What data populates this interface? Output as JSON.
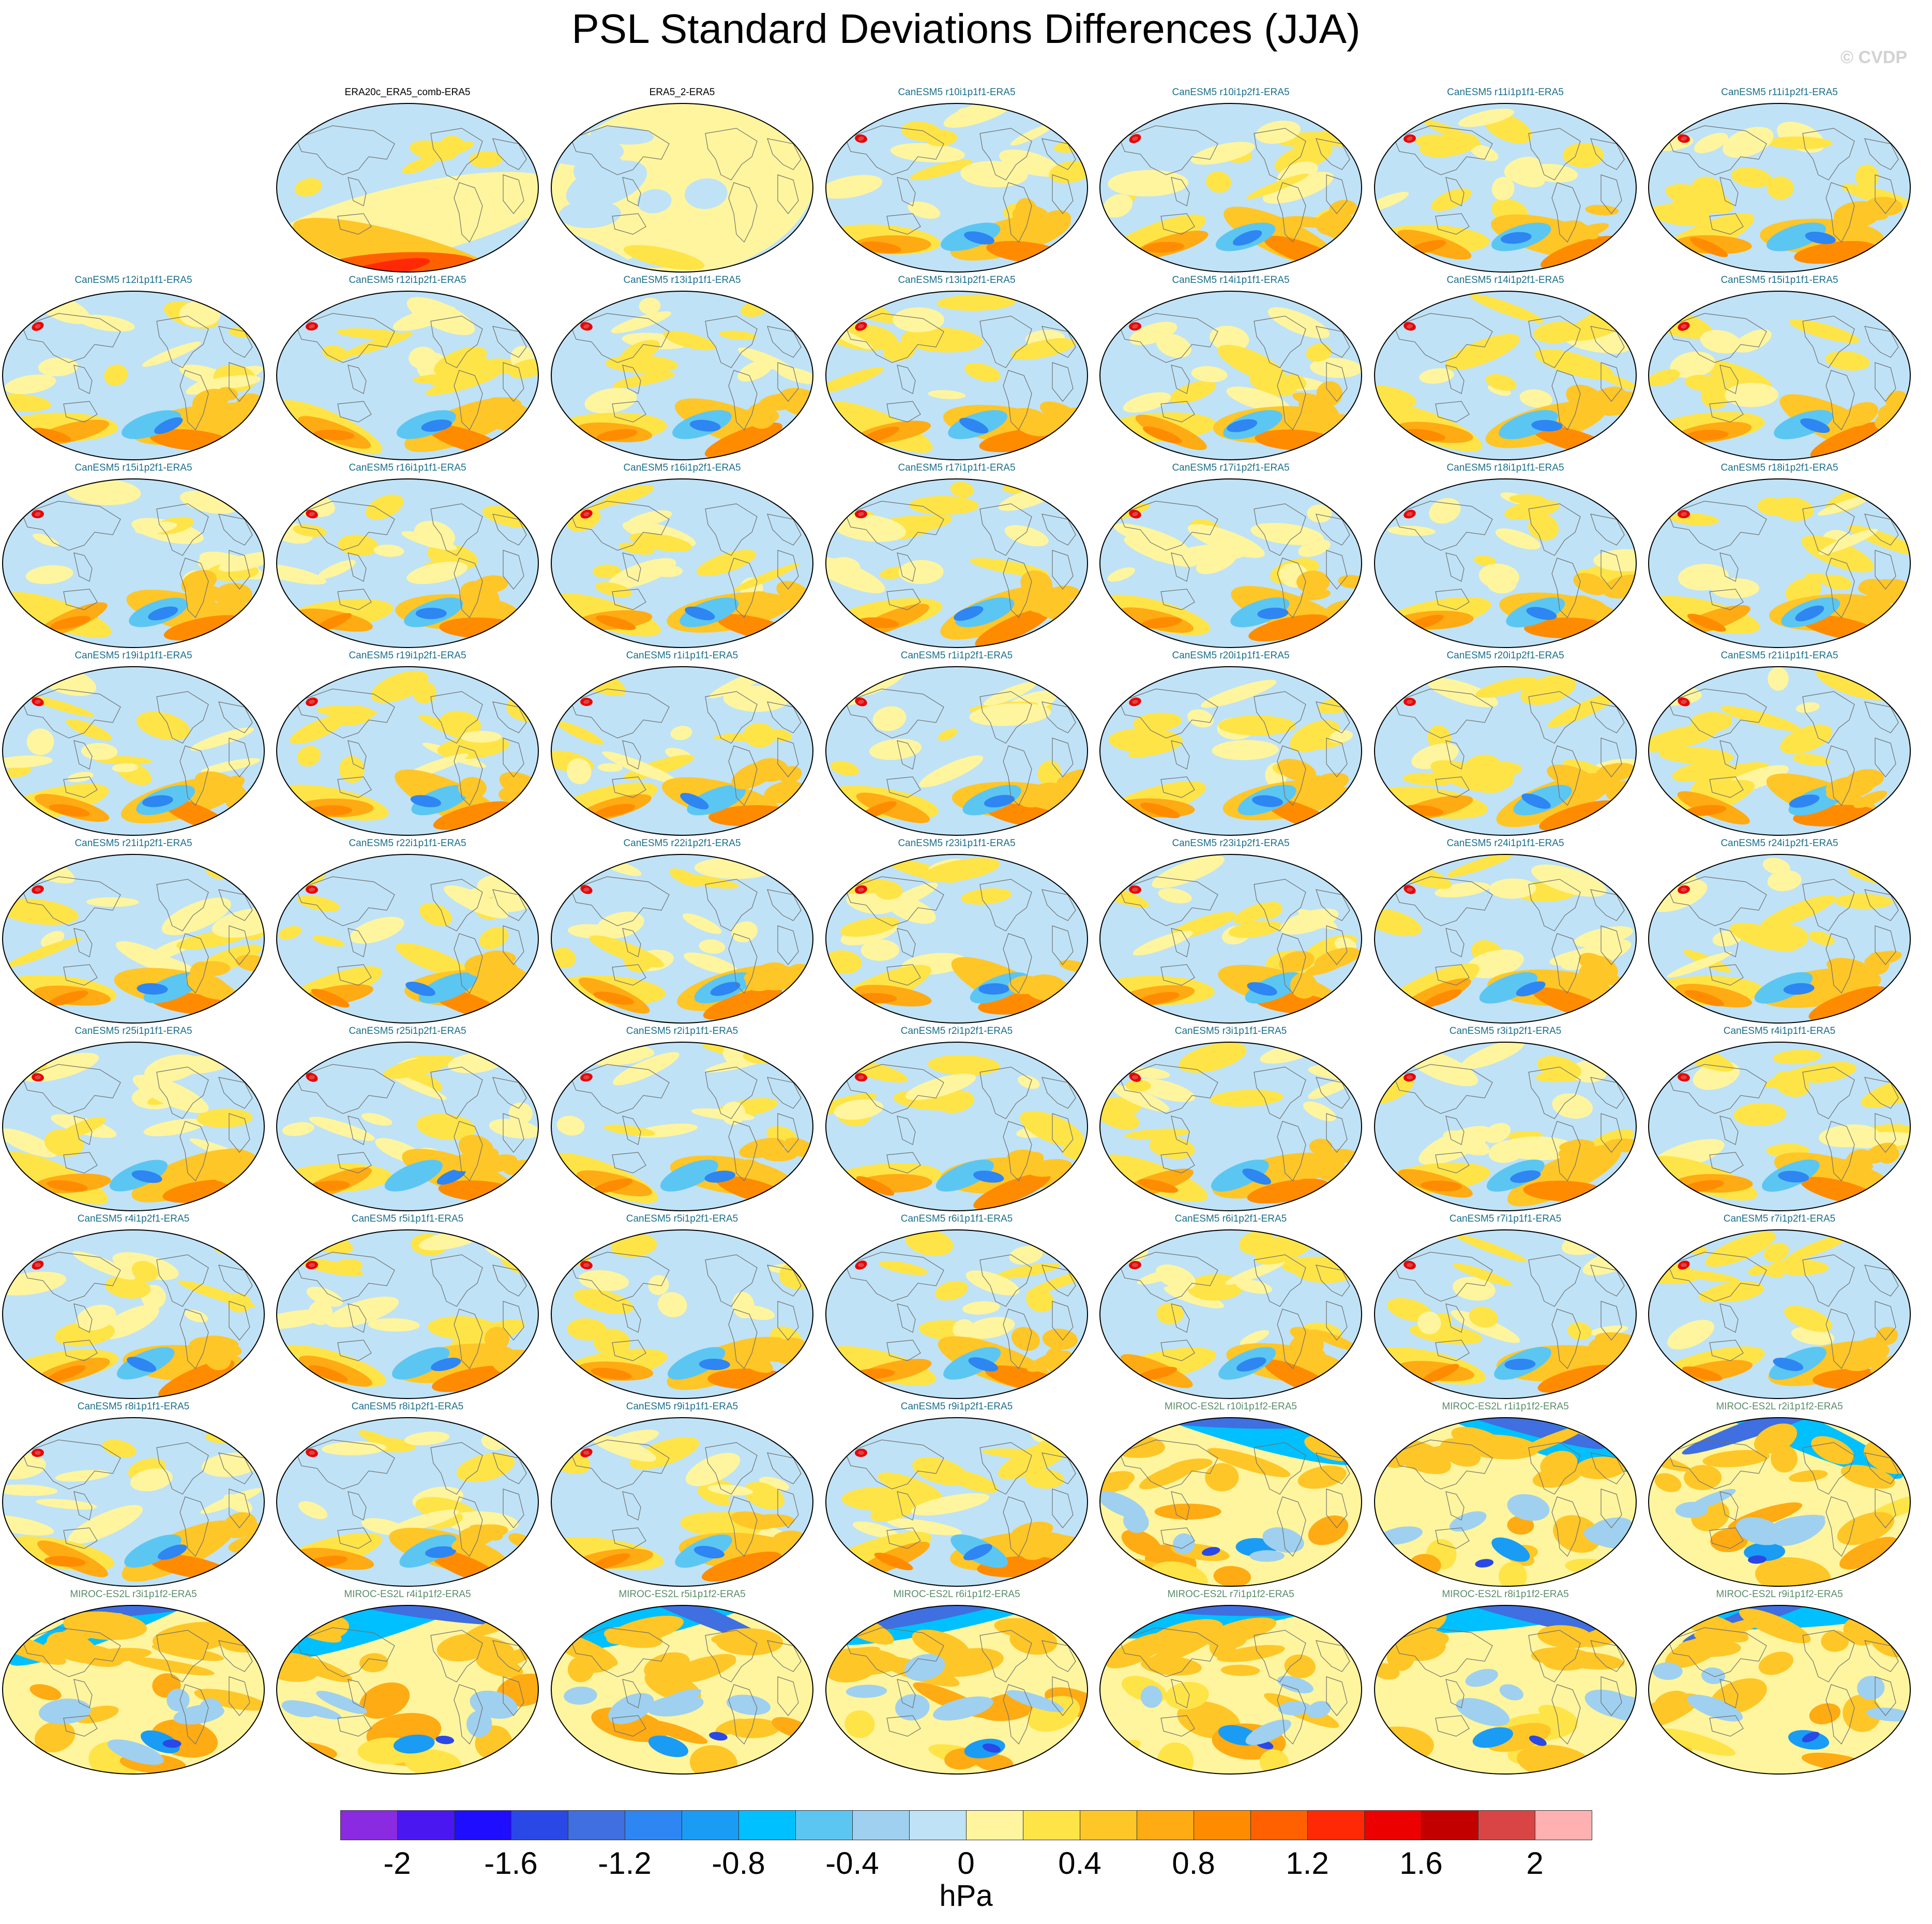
{
  "title": "PSL Standard Deviations Differences (JJA)",
  "copyright": "© CVDP",
  "colors": {
    "obs_title": "#000000",
    "canesm5_title": "#1b6f8c",
    "miroc_title": "#5b8c6a",
    "coastline": "#707070",
    "map_border": "#000000"
  },
  "chart_data": {
    "type": "heatmap",
    "units": "hPa",
    "colorbar": {
      "colors": [
        "#8a2be2",
        "#4b17f0",
        "#1f0dff",
        "#2a48e6",
        "#3f6fe0",
        "#2d86f2",
        "#1a9cf5",
        "#00c0ff",
        "#5cc6f2",
        "#9fd0ef",
        "#bfe2f6",
        "#fff59e",
        "#ffe447",
        "#ffc627",
        "#ffab13",
        "#ff8c00",
        "#ff6100",
        "#ff2a05",
        "#ec0000",
        "#c20000",
        "#d94545",
        "#ffb0b0"
      ],
      "tick_labels": [
        "-2",
        "-1.6",
        "-1.2",
        "-0.8",
        "-0.4",
        "0",
        "0.4",
        "0.8",
        "1.2",
        "1.6",
        "2"
      ]
    },
    "panels": [
      {
        "title": "ERA20c_ERA5_comb-ERA5",
        "group": "obs"
      },
      {
        "title": "ERA5_2-ERA5",
        "group": "obs"
      },
      {
        "title": "CanESM5 r10i1p1f1-ERA5",
        "group": "canesm5"
      },
      {
        "title": "CanESM5 r10i1p2f1-ERA5",
        "group": "canesm5"
      },
      {
        "title": "CanESM5 r11i1p1f1-ERA5",
        "group": "canesm5"
      },
      {
        "title": "CanESM5 r11i1p2f1-ERA5",
        "group": "canesm5"
      },
      {
        "title": "CanESM5 r12i1p1f1-ERA5",
        "group": "canesm5"
      },
      {
        "title": "CanESM5 r12i1p2f1-ERA5",
        "group": "canesm5"
      },
      {
        "title": "CanESM5 r13i1p1f1-ERA5",
        "group": "canesm5"
      },
      {
        "title": "CanESM5 r13i1p2f1-ERA5",
        "group": "canesm5"
      },
      {
        "title": "CanESM5 r14i1p1f1-ERA5",
        "group": "canesm5"
      },
      {
        "title": "CanESM5 r14i1p2f1-ERA5",
        "group": "canesm5"
      },
      {
        "title": "CanESM5 r15i1p1f1-ERA5",
        "group": "canesm5"
      },
      {
        "title": "CanESM5 r15i1p2f1-ERA5",
        "group": "canesm5"
      },
      {
        "title": "CanESM5 r16i1p1f1-ERA5",
        "group": "canesm5"
      },
      {
        "title": "CanESM5 r16i1p2f1-ERA5",
        "group": "canesm5"
      },
      {
        "title": "CanESM5 r17i1p1f1-ERA5",
        "group": "canesm5"
      },
      {
        "title": "CanESM5 r17i1p2f1-ERA5",
        "group": "canesm5"
      },
      {
        "title": "CanESM5 r18i1p1f1-ERA5",
        "group": "canesm5"
      },
      {
        "title": "CanESM5 r18i1p2f1-ERA5",
        "group": "canesm5"
      },
      {
        "title": "CanESM5 r19i1p1f1-ERA5",
        "group": "canesm5"
      },
      {
        "title": "CanESM5 r19i1p2f1-ERA5",
        "group": "canesm5"
      },
      {
        "title": "CanESM5 r1i1p1f1-ERA5",
        "group": "canesm5"
      },
      {
        "title": "CanESM5 r1i1p2f1-ERA5",
        "group": "canesm5"
      },
      {
        "title": "CanESM5 r20i1p1f1-ERA5",
        "group": "canesm5"
      },
      {
        "title": "CanESM5 r20i1p2f1-ERA5",
        "group": "canesm5"
      },
      {
        "title": "CanESM5 r21i1p1f1-ERA5",
        "group": "canesm5"
      },
      {
        "title": "CanESM5 r21i1p2f1-ERA5",
        "group": "canesm5"
      },
      {
        "title": "CanESM5 r22i1p1f1-ERA5",
        "group": "canesm5"
      },
      {
        "title": "CanESM5 r22i1p2f1-ERA5",
        "group": "canesm5"
      },
      {
        "title": "CanESM5 r23i1p1f1-ERA5",
        "group": "canesm5"
      },
      {
        "title": "CanESM5 r23i1p2f1-ERA5",
        "group": "canesm5"
      },
      {
        "title": "CanESM5 r24i1p1f1-ERA5",
        "group": "canesm5"
      },
      {
        "title": "CanESM5 r24i1p2f1-ERA5",
        "group": "canesm5"
      },
      {
        "title": "CanESM5 r25i1p1f1-ERA5",
        "group": "canesm5"
      },
      {
        "title": "CanESM5 r25i1p2f1-ERA5",
        "group": "canesm5"
      },
      {
        "title": "CanESM5 r2i1p1f1-ERA5",
        "group": "canesm5"
      },
      {
        "title": "CanESM5 r2i1p2f1-ERA5",
        "group": "canesm5"
      },
      {
        "title": "CanESM5 r3i1p1f1-ERA5",
        "group": "canesm5"
      },
      {
        "title": "CanESM5 r3i1p2f1-ERA5",
        "group": "canesm5"
      },
      {
        "title": "CanESM5 r4i1p1f1-ERA5",
        "group": "canesm5"
      },
      {
        "title": "CanESM5 r4i1p2f1-ERA5",
        "group": "canesm5"
      },
      {
        "title": "CanESM5 r5i1p1f1-ERA5",
        "group": "canesm5"
      },
      {
        "title": "CanESM5 r5i1p2f1-ERA5",
        "group": "canesm5"
      },
      {
        "title": "CanESM5 r6i1p1f1-ERA5",
        "group": "canesm5"
      },
      {
        "title": "CanESM5 r6i1p2f1-ERA5",
        "group": "canesm5"
      },
      {
        "title": "CanESM5 r7i1p1f1-ERA5",
        "group": "canesm5"
      },
      {
        "title": "CanESM5 r7i1p2f1-ERA5",
        "group": "canesm5"
      },
      {
        "title": "CanESM5 r8i1p1f1-ERA5",
        "group": "canesm5"
      },
      {
        "title": "CanESM5 r8i1p2f1-ERA5",
        "group": "canesm5"
      },
      {
        "title": "CanESM5 r9i1p1f1-ERA5",
        "group": "canesm5"
      },
      {
        "title": "CanESM5 r9i1p2f1-ERA5",
        "group": "canesm5"
      },
      {
        "title": "MIROC-ES2L r10i1p1f2-ERA5",
        "group": "miroc"
      },
      {
        "title": "MIROC-ES2L r1i1p1f2-ERA5",
        "group": "miroc"
      },
      {
        "title": "MIROC-ES2L r2i1p1f2-ERA5",
        "group": "miroc"
      },
      {
        "title": "MIROC-ES2L r3i1p1f2-ERA5",
        "group": "miroc"
      },
      {
        "title": "MIROC-ES2L r4i1p1f2-ERA5",
        "group": "miroc"
      },
      {
        "title": "MIROC-ES2L r5i1p1f2-ERA5",
        "group": "miroc"
      },
      {
        "title": "MIROC-ES2L r6i1p1f2-ERA5",
        "group": "miroc"
      },
      {
        "title": "MIROC-ES2L r7i1p1f2-ERA5",
        "group": "miroc"
      },
      {
        "title": "MIROC-ES2L r8i1p1f2-ERA5",
        "group": "miroc"
      },
      {
        "title": "MIROC-ES2L r9i1p1f2-ERA5",
        "group": "miroc"
      }
    ]
  }
}
